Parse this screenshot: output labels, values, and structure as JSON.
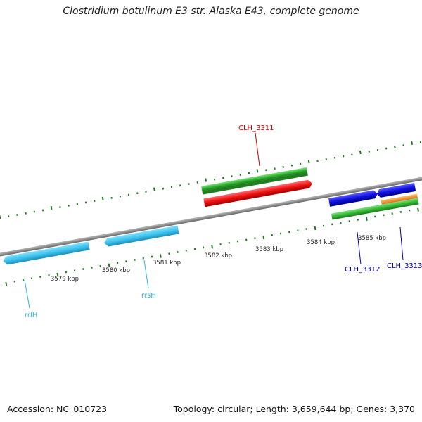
{
  "title": "Clostridium botulinum E3 str. Alaska E43, complete genome",
  "accession": "Accession: NC_010723",
  "topology": "Topology: circular; Length: 3,659,644 bp; Genes: 3,370",
  "ticks": [
    "3579 kbp",
    "3580 kbp",
    "3581 kbp",
    "3582 kbp",
    "3583 kbp",
    "3584 kbp",
    "3585 kbp"
  ],
  "genes": [
    {
      "label": "rrlH",
      "color": "#2ab8d8"
    },
    {
      "label": "rrsH",
      "color": "#2ab8d8"
    },
    {
      "label": "CLH_3311",
      "color": "#cc0000"
    },
    {
      "label": "CLH_3312",
      "color": "#0000aa"
    },
    {
      "label": "CLH_3313",
      "color": "#0000aa"
    }
  ],
  "colors": {
    "backbone": "#8a8a8a",
    "rRNA": "#44c8f0",
    "cds": "#ee1111",
    "cds_blue": "#1010dd",
    "gene": "#33bb33",
    "orange": "#f09020",
    "tick": "#227722"
  }
}
